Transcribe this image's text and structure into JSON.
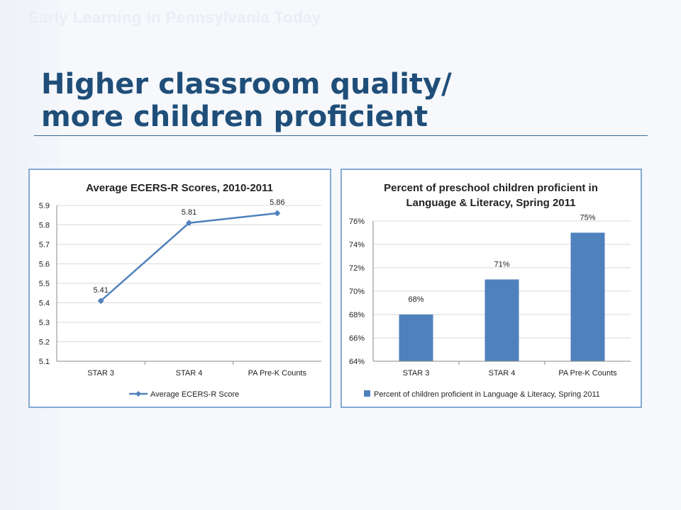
{
  "slide": {
    "header": "Early Learning in Pennsylvania Today",
    "title_line1": "Higher classroom quality/",
    "title_line2": "more children proficient"
  },
  "colors": {
    "title": "#1f4e79",
    "series": "#4f81bd",
    "chart_border": "#86a9d3"
  },
  "chart_data": [
    {
      "type": "line",
      "title": "Average ECERS-R Scores, 2010-2011",
      "categories": [
        "STAR 3",
        "STAR 4",
        "PA Pre-K Counts"
      ],
      "series": [
        {
          "name": "Average ECERS-R Score",
          "values": [
            5.41,
            5.81,
            5.86
          ]
        }
      ],
      "data_labels": [
        "5.41",
        "5.81",
        "5.86"
      ],
      "ylim": [
        5.1,
        5.9
      ],
      "yticks": [
        "5.9",
        "5.8",
        "5.7",
        "5.6",
        "5.5",
        "5.4",
        "5.3",
        "5.2",
        "5.1"
      ],
      "grid": true,
      "legend": "bottom",
      "marker": "diamond"
    },
    {
      "type": "bar",
      "title_lines": [
        "Percent of preschool children proficient in",
        "Language & Literacy, Spring 2011"
      ],
      "categories": [
        "STAR 3",
        "STAR 4",
        "PA Pre-K Counts"
      ],
      "series": [
        {
          "name": "Percent of children proficient in Language & Literacy, Spring 2011",
          "values": [
            68,
            71,
            75
          ]
        }
      ],
      "data_labels": [
        "68%",
        "71%",
        "75%"
      ],
      "ylim": [
        64,
        76
      ],
      "yticks": [
        "76%",
        "74%",
        "72%",
        "70%",
        "68%",
        "66%",
        "64%"
      ],
      "grid": true,
      "legend": "bottom"
    }
  ]
}
